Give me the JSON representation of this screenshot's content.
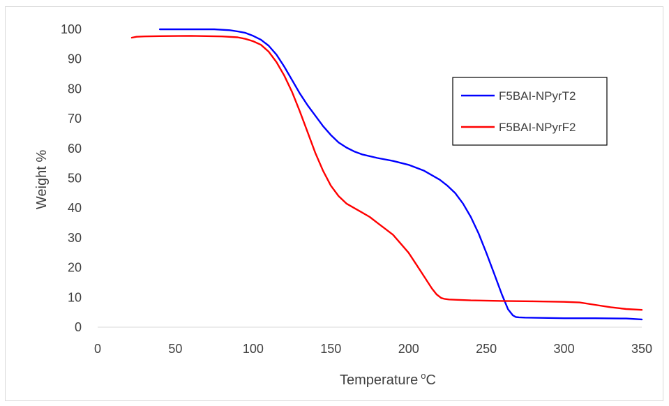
{
  "chart_data": {
    "type": "line",
    "title": "",
    "xlabel": "Temperature",
    "xlabel_sup": "o",
    "xlabel_suffix": "C",
    "ylabel": "Weight %",
    "xlim": [
      0,
      350
    ],
    "ylim": [
      0,
      100
    ],
    "xticks": [
      0,
      50,
      100,
      150,
      200,
      250,
      300,
      350
    ],
    "yticks": [
      0,
      10,
      20,
      30,
      40,
      50,
      60,
      70,
      80,
      90,
      100
    ],
    "grid": false,
    "legend": "right",
    "series": [
      {
        "name": "F5BAI-NPyrT2",
        "color": "#0000ff",
        "x": [
          40,
          50,
          60,
          75,
          85,
          90,
          95,
          100,
          105,
          110,
          115,
          120,
          125,
          130,
          135,
          140,
          145,
          150,
          155,
          160,
          165,
          170,
          180,
          190,
          200,
          210,
          220,
          225,
          230,
          235,
          240,
          245,
          250,
          255,
          260,
          264,
          267,
          269,
          271,
          275,
          290,
          300,
          320,
          340,
          350
        ],
        "y": [
          100,
          100,
          100,
          100,
          99.7,
          99.3,
          98.8,
          97.8,
          96.5,
          94.5,
          91.5,
          87.5,
          83,
          78.5,
          74.5,
          71,
          67.5,
          64.5,
          62,
          60.3,
          59,
          58,
          56.8,
          55.8,
          54.5,
          52.5,
          49.5,
          47.5,
          45,
          41.5,
          37,
          31.5,
          25,
          18,
          11,
          6,
          4,
          3.4,
          3.3,
          3.2,
          3.1,
          3.0,
          3.0,
          2.9,
          2.6
        ]
      },
      {
        "name": "F5BAI-NPyrF2",
        "color": "#ff0000",
        "x": [
          22,
          25,
          30,
          40,
          60,
          80,
          90,
          95,
          100,
          105,
          110,
          115,
          120,
          125,
          130,
          135,
          140,
          145,
          150,
          155,
          160,
          165,
          170,
          175,
          180,
          185,
          190,
          195,
          200,
          205,
          210,
          215,
          218,
          221,
          223,
          226,
          230,
          240,
          260,
          280,
          300,
          310,
          320,
          330,
          340,
          350
        ],
        "y": [
          97.2,
          97.5,
          97.6,
          97.7,
          97.8,
          97.6,
          97.3,
          96.8,
          96,
          94.8,
          92.5,
          89,
          84.5,
          79,
          72.5,
          65.5,
          58.5,
          52.5,
          47.5,
          44,
          41.5,
          40,
          38.5,
          37,
          35,
          33,
          31,
          28,
          25,
          21,
          17,
          13,
          11,
          9.8,
          9.5,
          9.3,
          9.2,
          9.0,
          8.8,
          8.7,
          8.5,
          8.3,
          7.5,
          6.7,
          6.1,
          5.8
        ]
      }
    ]
  }
}
